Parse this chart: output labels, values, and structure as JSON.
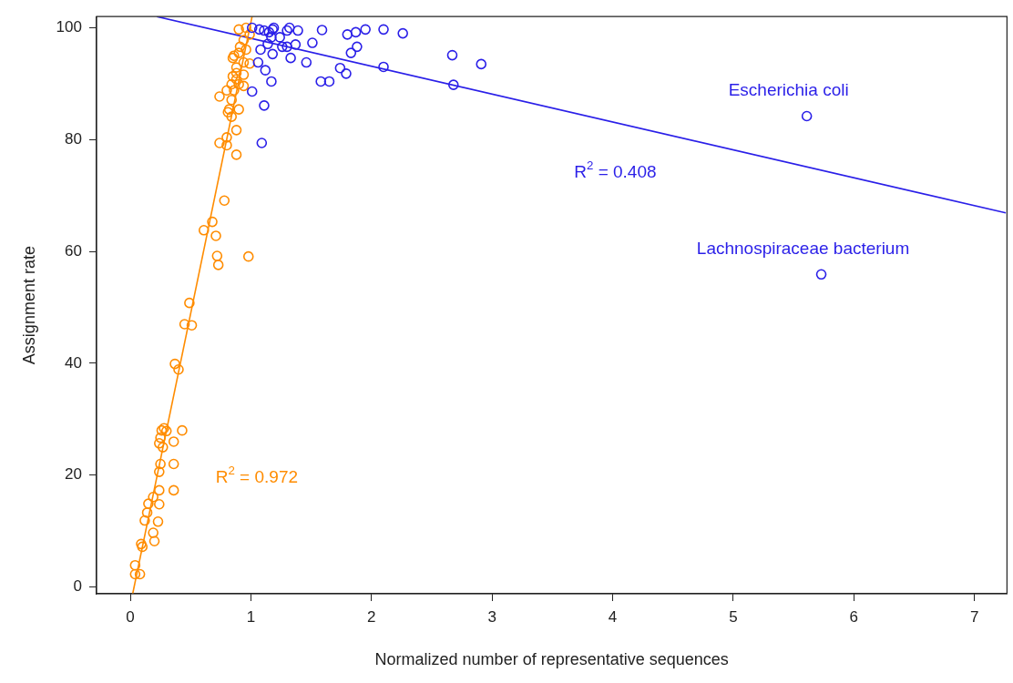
{
  "chart_data": {
    "type": "scatter",
    "xlabel": "Normalized number of representative sequences",
    "ylabel": "Assignment rate",
    "xlim": [
      -0.28,
      7.27
    ],
    "ylim": [
      -1.2,
      102
    ],
    "xticks": [
      0,
      1,
      2,
      3,
      4,
      5,
      6,
      7
    ],
    "yticks": [
      0,
      20,
      40,
      60,
      80,
      100
    ],
    "grid": false,
    "legend": false,
    "marker": "circle",
    "series": [
      {
        "type": "scatter",
        "color": "#2a1fe8",
        "x": [
          1.01,
          1.07,
          1.19,
          1.32,
          1.39,
          1.59,
          1.8,
          1.87,
          1.95,
          2.1,
          2.26,
          1.15,
          1.17,
          1.24,
          1.14,
          1.08,
          1.26,
          1.3,
          1.37,
          1.51,
          1.88,
          1.83,
          1.18,
          1.33,
          1.06,
          1.46,
          1.74,
          1.79,
          2.1,
          2.67,
          2.91,
          2.68,
          1.12,
          1.17,
          1.58,
          1.65,
          1.01,
          1.11,
          1.09,
          1.11,
          1.18,
          1.3,
          5.61,
          5.73
        ],
        "values": [
          100,
          99.7,
          100,
          100,
          99.5,
          99.6,
          98.8,
          99.2,
          99.7,
          99.7,
          99.0,
          99.2,
          98.3,
          98.3,
          97.1,
          96.1,
          96.6,
          96.6,
          97.0,
          97.3,
          96.6,
          95.5,
          95.3,
          94.6,
          93.8,
          93.8,
          92.8,
          91.8,
          93.0,
          95.1,
          93.5,
          89.8,
          92.4,
          90.4,
          90.4,
          90.4,
          88.6,
          86.1,
          79.4,
          99.5,
          99.7,
          99.5,
          84.2,
          55.9
        ]
      },
      {
        "type": "scatter",
        "color": "#ff8c00",
        "x": [
          0.9,
          0.96,
          0.99,
          0.94,
          0.91,
          0.96,
          0.9,
          0.86,
          0.85,
          0.94,
          0.99,
          0.88,
          0.88,
          0.85,
          0.94,
          0.88,
          0.9,
          0.84,
          0.94,
          0.8,
          0.86,
          0.74,
          0.84,
          0.82,
          0.9,
          0.81,
          0.84,
          0.88,
          0.8,
          0.74,
          0.8,
          0.88,
          0.78,
          0.68,
          0.61,
          0.71,
          0.72,
          0.73,
          0.98,
          0.49,
          0.45,
          0.51,
          0.37,
          0.4,
          0.43,
          0.28,
          0.26,
          0.3,
          0.25,
          0.36,
          0.24,
          0.27,
          0.25,
          0.36,
          0.24,
          0.36,
          0.24,
          0.19,
          0.15,
          0.24,
          0.14,
          0.12,
          0.23,
          0.19,
          0.2,
          0.09,
          0.1,
          0.04,
          0.04,
          0.08
        ],
        "values": [
          99.7,
          100,
          98.8,
          97.8,
          96.6,
          96.1,
          95.5,
          95.0,
          94.6,
          93.8,
          93.6,
          92.9,
          91.9,
          91.3,
          91.6,
          90.8,
          89.9,
          89.9,
          89.6,
          88.8,
          88.8,
          87.7,
          87.1,
          85.4,
          85.4,
          84.9,
          84.1,
          81.7,
          80.4,
          79.4,
          79.0,
          77.3,
          69.1,
          65.3,
          63.8,
          62.8,
          59.2,
          57.6,
          59.1,
          50.8,
          47.0,
          46.8,
          39.9,
          38.9,
          28.0,
          28.4,
          28.0,
          27.9,
          26.7,
          26.0,
          25.7,
          25.0,
          22.0,
          22.0,
          20.6,
          17.3,
          17.3,
          16.1,
          14.9,
          14.8,
          13.3,
          11.9,
          11.7,
          9.7,
          8.2,
          7.7,
          7.2,
          3.9,
          2.3,
          2.3
        ]
      },
      {
        "type": "line",
        "marker": "none",
        "color": "#2a1fe8",
        "x": [
          0.22,
          7.26
        ],
        "values": [
          102,
          66.9
        ]
      },
      {
        "type": "line",
        "marker": "none",
        "color": "#ff8c00",
        "x": [
          0.02,
          1.01
        ],
        "values": [
          -1.2,
          102
        ]
      }
    ],
    "annotations": [
      {
        "text": "Escherichia coli",
        "x": 5.61,
        "y": 84.2
      },
      {
        "text": "Lachnospiraceae bacterium",
        "x": 5.73,
        "y": 55.9
      },
      "R$^{2}$ = 0.408",
      "R$^{2}$ = 0.972"
    ]
  }
}
